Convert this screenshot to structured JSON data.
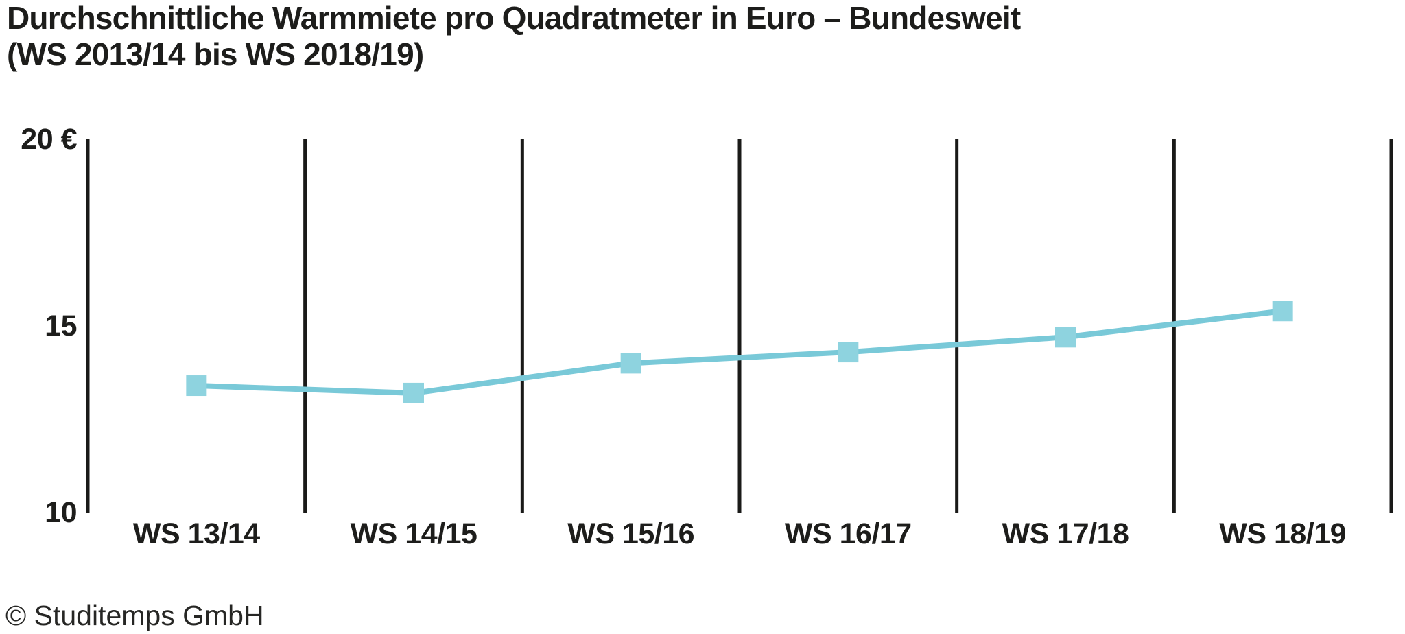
{
  "title": "Durchschnittliche Warmmiete pro Quadratmeter in Euro – Bundesweit",
  "subtitle": "(WS 2013/14 bis WS 2018/19)",
  "footer": {
    "copyright": "© Studitemps GmbH"
  },
  "colors": {
    "line": "#79c9d8",
    "marker": "#8ed3df",
    "axis": "#1a1a18",
    "text": "#1d1d1b"
  },
  "chart_data": {
    "type": "line",
    "title": "Durchschnittliche Warmmiete pro Quadratmeter in Euro – Bundesweit",
    "subtitle": "(WS 2013/14 bis WS 2018/19)",
    "categories": [
      "WS 13/14",
      "WS 14/15",
      "WS 15/16",
      "WS 16/17",
      "WS 17/18",
      "WS 18/19"
    ],
    "values": [
      13.4,
      13.2,
      14.0,
      14.3,
      14.7,
      15.4
    ],
    "xlabel": "",
    "ylabel": "",
    "ylim": [
      10,
      20
    ],
    "y_ticks": [
      {
        "value": 20,
        "label": "20 €"
      },
      {
        "value": 15,
        "label": "15"
      },
      {
        "value": 10,
        "label": "10"
      }
    ],
    "grid": "vertical-lines-only",
    "marker_shape": "square",
    "legend": "none",
    "source_note": "© Studitemps GmbH"
  }
}
